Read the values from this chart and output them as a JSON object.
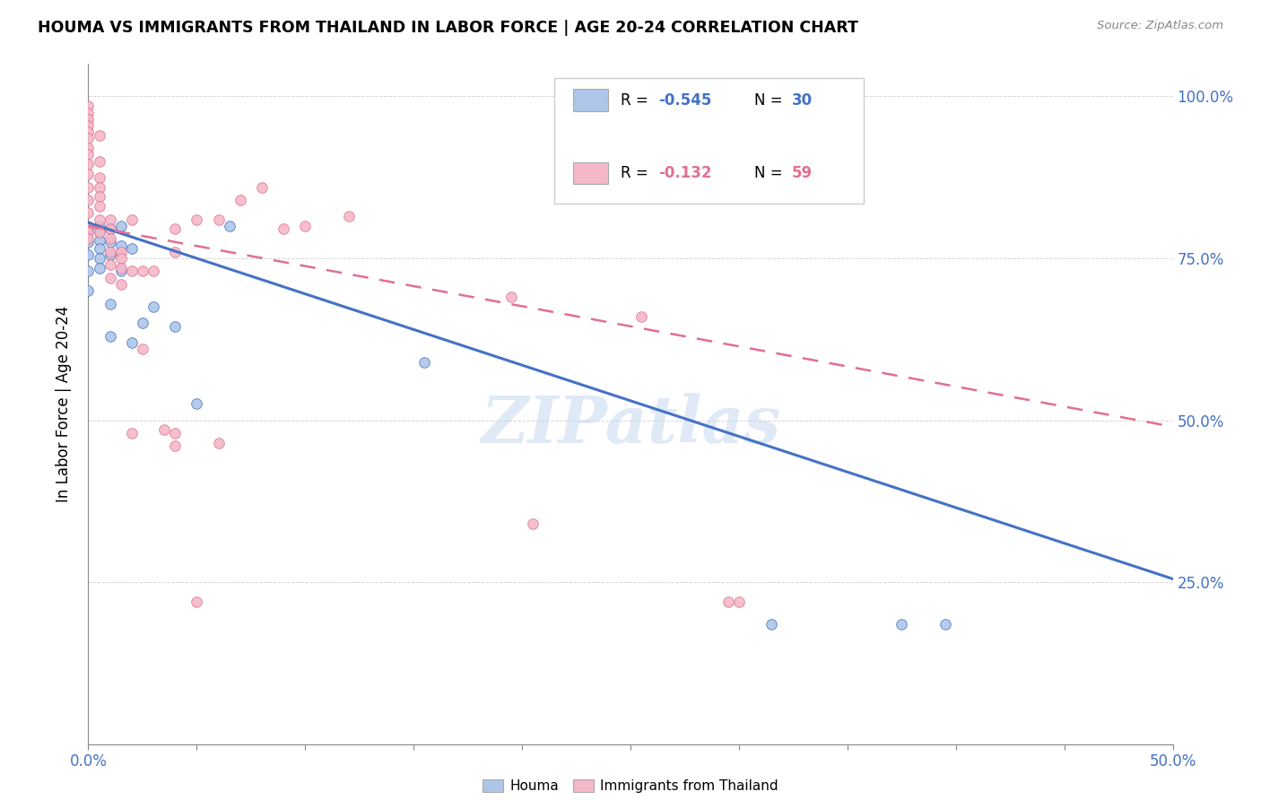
{
  "title": "HOUMA VS IMMIGRANTS FROM THAILAND IN LABOR FORCE | AGE 20-24 CORRELATION CHART",
  "source": "Source: ZipAtlas.com",
  "ylabel": "In Labor Force | Age 20-24",
  "xlim": [
    0.0,
    0.5
  ],
  "ylim": [
    0.0,
    1.05
  ],
  "houma_color": "#aec6e8",
  "thailand_color": "#f4b8c8",
  "houma_line_color": "#4472c4",
  "thailand_line_color": "#e07090",
  "houma_R": -0.545,
  "houma_N": 30,
  "thailand_R": -0.132,
  "thailand_N": 59,
  "watermark": "ZIPatlas",
  "houma_line_y0": 0.805,
  "houma_line_y1": 0.255,
  "thailand_line_y0": 0.8,
  "thailand_line_y1": 0.49,
  "houma_scatter_x": [
    0.0,
    0.0,
    0.0,
    0.0,
    0.0,
    0.005,
    0.005,
    0.005,
    0.005,
    0.005,
    0.005,
    0.01,
    0.01,
    0.01,
    0.01,
    0.01,
    0.015,
    0.015,
    0.015,
    0.02,
    0.02,
    0.025,
    0.03,
    0.04,
    0.05,
    0.065,
    0.155,
    0.315,
    0.375,
    0.395
  ],
  "houma_scatter_y": [
    0.795,
    0.775,
    0.755,
    0.73,
    0.7,
    0.8,
    0.79,
    0.778,
    0.765,
    0.75,
    0.735,
    0.795,
    0.775,
    0.755,
    0.68,
    0.63,
    0.8,
    0.77,
    0.73,
    0.765,
    0.62,
    0.65,
    0.675,
    0.645,
    0.525,
    0.8,
    0.59,
    0.185,
    0.185,
    0.185
  ],
  "thailand_scatter_x": [
    0.0,
    0.0,
    0.0,
    0.0,
    0.0,
    0.0,
    0.0,
    0.0,
    0.0,
    0.0,
    0.0,
    0.0,
    0.0,
    0.0,
    0.0,
    0.0,
    0.005,
    0.005,
    0.005,
    0.005,
    0.005,
    0.005,
    0.005,
    0.005,
    0.01,
    0.01,
    0.01,
    0.01,
    0.01,
    0.01,
    0.015,
    0.015,
    0.015,
    0.015,
    0.02,
    0.02,
    0.02,
    0.025,
    0.025,
    0.03,
    0.035,
    0.04,
    0.04,
    0.04,
    0.04,
    0.05,
    0.05,
    0.06,
    0.06,
    0.07,
    0.08,
    0.09,
    0.1,
    0.12,
    0.195,
    0.205,
    0.255,
    0.295,
    0.3
  ],
  "thailand_scatter_y": [
    0.985,
    0.975,
    0.965,
    0.955,
    0.945,
    0.935,
    0.92,
    0.91,
    0.895,
    0.88,
    0.86,
    0.84,
    0.82,
    0.8,
    0.79,
    0.78,
    0.94,
    0.9,
    0.875,
    0.86,
    0.845,
    0.83,
    0.81,
    0.79,
    0.81,
    0.795,
    0.78,
    0.76,
    0.74,
    0.72,
    0.76,
    0.75,
    0.735,
    0.71,
    0.81,
    0.73,
    0.48,
    0.73,
    0.61,
    0.73,
    0.485,
    0.795,
    0.76,
    0.48,
    0.46,
    0.81,
    0.22,
    0.81,
    0.465,
    0.84,
    0.86,
    0.795,
    0.8,
    0.815,
    0.69,
    0.34,
    0.66,
    0.22,
    0.22
  ]
}
